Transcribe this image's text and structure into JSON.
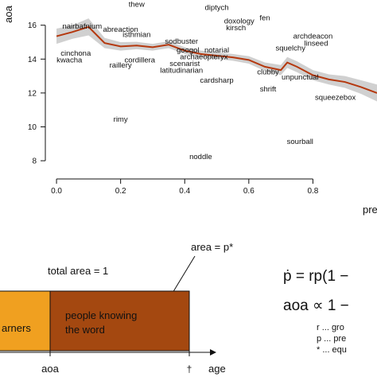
{
  "chart_data": {
    "type": "scatter",
    "xlabel": "pre",
    "ylabel": "aoa",
    "xlim": [
      -0.02,
      1.0
    ],
    "ylim": [
      7.3,
      17.3
    ],
    "x_ticks": [
      "0.0",
      "0.2",
      "0.4",
      "0.6",
      "0.8"
    ],
    "x_tick_values": [
      0.0,
      0.2,
      0.4,
      0.6,
      0.8
    ],
    "y_ticks": [
      "8",
      "10",
      "12",
      "14",
      "16"
    ],
    "y_tick_values": [
      8,
      10,
      12,
      14,
      16
    ],
    "points": [
      {
        "label": "thew",
        "x": 0.25,
        "y": 17.1
      },
      {
        "label": "diptych",
        "x": 0.5,
        "y": 16.9
      },
      {
        "label": "fen",
        "x": 0.65,
        "y": 16.3
      },
      {
        "label": "doxology",
        "x": 0.57,
        "y": 16.1
      },
      {
        "label": "kirsch",
        "x": 0.56,
        "y": 15.7
      },
      {
        "label": "nairbafnium",
        "x": 0.08,
        "y": 15.8
      },
      {
        "label": "abreaction",
        "x": 0.2,
        "y": 15.6
      },
      {
        "label": "isthmian",
        "x": 0.25,
        "y": 15.3
      },
      {
        "label": "archdeacon",
        "x": 0.8,
        "y": 15.2
      },
      {
        "label": "sodbuster",
        "x": 0.39,
        "y": 14.9
      },
      {
        "label": "linseed",
        "x": 0.81,
        "y": 14.8
      },
      {
        "label": "squelchy",
        "x": 0.73,
        "y": 14.5
      },
      {
        "label": "googol",
        "x": 0.41,
        "y": 14.4
      },
      {
        "label": "notarial",
        "x": 0.5,
        "y": 14.4
      },
      {
        "label": "cinchona",
        "x": 0.06,
        "y": 14.2
      },
      {
        "label": "archaeopteryx",
        "x": 0.46,
        "y": 14.0
      },
      {
        "label": "cordillera",
        "x": 0.26,
        "y": 13.8
      },
      {
        "label": "kwacha",
        "x": 0.04,
        "y": 13.8
      },
      {
        "label": "raillery",
        "x": 0.2,
        "y": 13.5
      },
      {
        "label": "scenarist",
        "x": 0.4,
        "y": 13.6
      },
      {
        "label": "latitudinarian",
        "x": 0.39,
        "y": 13.2
      },
      {
        "label": "clubby",
        "x": 0.66,
        "y": 13.1
      },
      {
        "label": "unpunctual",
        "x": 0.76,
        "y": 12.8
      },
      {
        "label": "cardsharp",
        "x": 0.5,
        "y": 12.6
      },
      {
        "label": "shrift",
        "x": 0.66,
        "y": 12.1
      },
      {
        "label": "squeezebox",
        "x": 0.87,
        "y": 11.6
      },
      {
        "label": "rimy",
        "x": 0.2,
        "y": 10.3
      },
      {
        "label": "sourball",
        "x": 0.76,
        "y": 9.0
      },
      {
        "label": "noddle",
        "x": 0.45,
        "y": 8.1
      }
    ],
    "smooth_fit": {
      "x": [
        0.0,
        0.05,
        0.1,
        0.15,
        0.2,
        0.25,
        0.3,
        0.35,
        0.4,
        0.45,
        0.5,
        0.55,
        0.6,
        0.65,
        0.7,
        0.72,
        0.75,
        0.8,
        0.85,
        0.9,
        0.95,
        1.0
      ],
      "y": [
        15.35,
        15.6,
        15.9,
        14.95,
        14.75,
        14.8,
        14.7,
        14.85,
        14.5,
        14.3,
        14.2,
        14.1,
        13.95,
        13.55,
        13.35,
        13.8,
        13.55,
        13.05,
        12.8,
        12.65,
        12.35,
        12.0
      ],
      "band_halfwidth": [
        0.45,
        0.4,
        0.5,
        0.3,
        0.25,
        0.22,
        0.2,
        0.2,
        0.2,
        0.2,
        0.2,
        0.2,
        0.22,
        0.25,
        0.3,
        0.32,
        0.32,
        0.3,
        0.3,
        0.35,
        0.4,
        0.5
      ]
    },
    "colors": {
      "fit_line": "#b5380e",
      "band": "#c8c8c8",
      "points": "#111111"
    }
  },
  "panel_b": {
    "area_label": "area = p*",
    "total_label": "total area = 1",
    "box_left_label": "arners",
    "box_right_label_1": "people knowing",
    "box_right_label_2": "the word",
    "axis_aoa": "aoa",
    "axis_dagger": "†",
    "axis_age": "age",
    "eq1": "ṗ = rp(1 −",
    "eq2": "aoa ∝ 1 −",
    "legend_r": "r ... gro",
    "legend_p": "p ... pre",
    "legend_star": "* ... equ",
    "colors": {
      "left_box": "#f0a020",
      "right_box": "#a44810"
    }
  }
}
